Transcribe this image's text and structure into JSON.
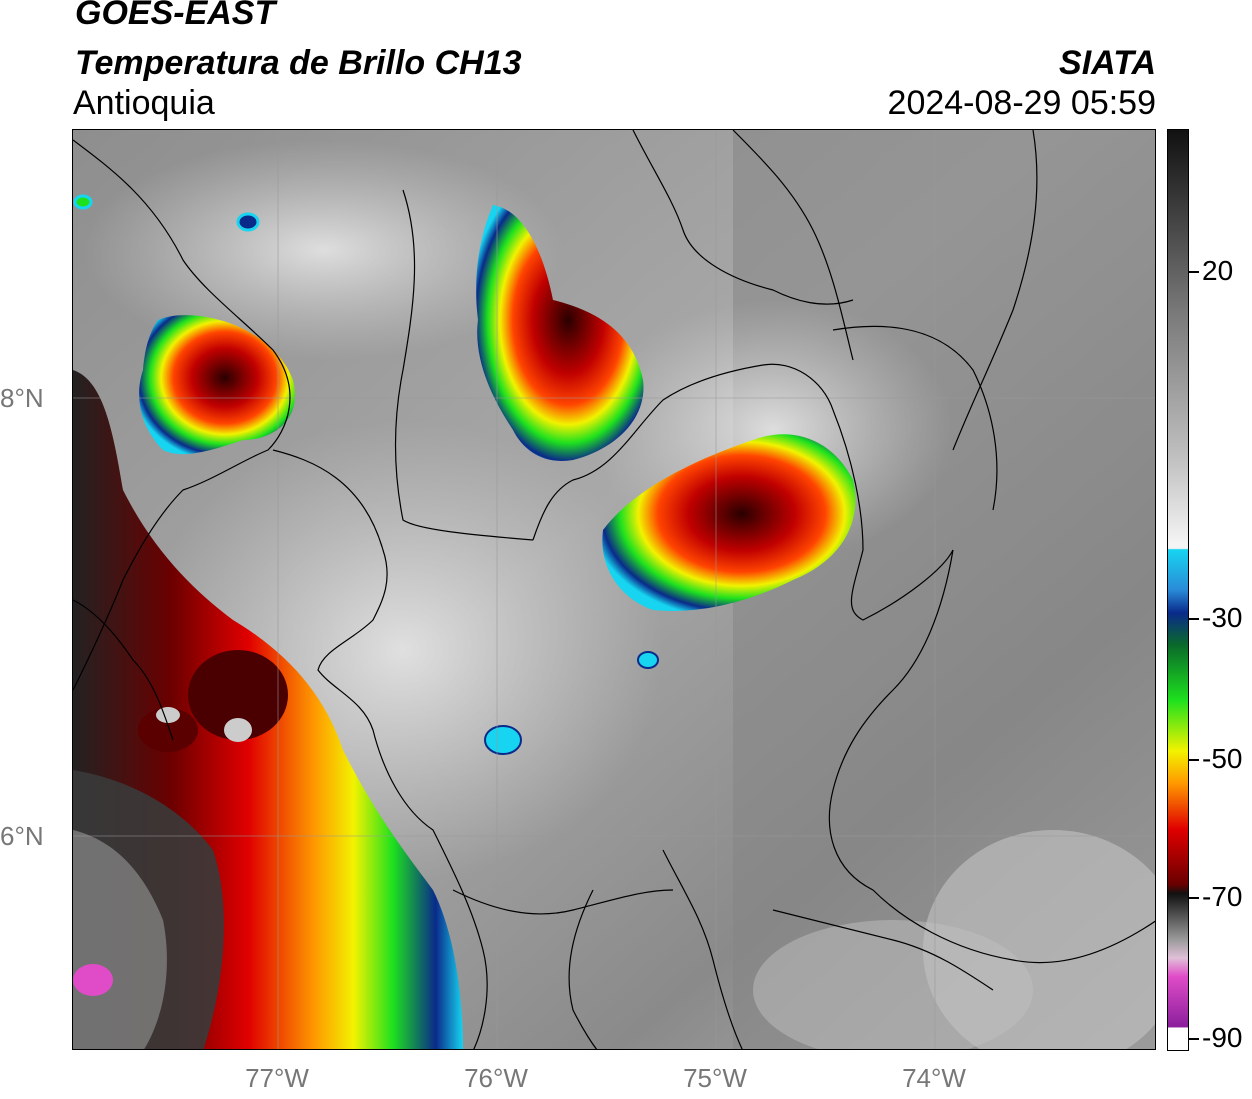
{
  "header": {
    "satellite": "GOES-EAST",
    "product": "Temperatura de Brillo CH13",
    "region": "Antioquia",
    "organization": "SIATA",
    "timestamp": "2024-08-29 05:59"
  },
  "map": {
    "lat_labels": [
      "8°N",
      "6°N"
    ],
    "lon_labels": [
      "77°W",
      "76°W",
      "75°W",
      "74°W"
    ]
  },
  "colorbar": {
    "tick_labels": [
      "20",
      "-30",
      "-50",
      "-70",
      "-90"
    ],
    "colors": {
      "cold_black": "#111111",
      "gray_scale_top": "#3a3a3a",
      "white": "#f4f4f4",
      "cyan": "#17d4f0",
      "dark_blue": "#0a2a8a",
      "green": "#1ee11e",
      "yellow": "#f2f200",
      "orange": "#ff9900",
      "red": "#e00000",
      "dark_red": "#6a0000",
      "pink": "#e04cc8",
      "purple": "#8b1f9c"
    }
  }
}
